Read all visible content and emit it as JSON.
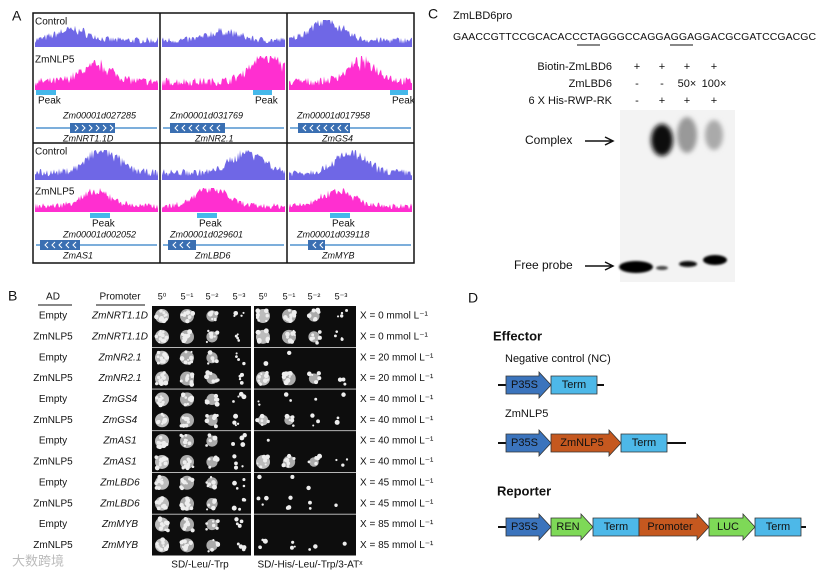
{
  "panel_labels": [
    "A",
    "B",
    "C",
    "D"
  ],
  "panel_a": {
    "rows": [
      {
        "control": "Control",
        "treatment": "ZmNLP5",
        "genes": [
          {
            "peak": "Peak",
            "id": "Zm00001d027285",
            "name": "ZmNRT1.1D"
          },
          {
            "peak": "Peak",
            "id": "Zm00001d031769",
            "name": "ZmNR2.1"
          },
          {
            "peak": "Peak",
            "id": "Zm00001d017958",
            "name": "ZmGS4"
          }
        ]
      },
      {
        "control": "Control",
        "treatment": "ZmNLP5",
        "genes": [
          {
            "peak": "Peak",
            "id": "Zm00001d002052",
            "name": "ZmAS1"
          },
          {
            "peak": "Peak",
            "id": "Zm00001d029601",
            "name": "ZmLBD6"
          },
          {
            "peak": "Peak",
            "id": "Zm00001d039118",
            "name": "ZmMYB"
          }
        ]
      }
    ]
  },
  "panel_b": {
    "headers": [
      "AD",
      "Promoter"
    ],
    "dilutions": [
      "5⁰",
      "5⁻¹",
      "5⁻²",
      "5⁻³",
      "5⁰",
      "5⁻¹",
      "5⁻²",
      "5⁻³"
    ],
    "rows": [
      {
        "ad": "Empty",
        "promoter": "ZmNRT1.1D",
        "condition": "X = 0 mmol L⁻¹"
      },
      {
        "ad": "ZmNLP5",
        "promoter": "ZmNRT1.1D",
        "condition": "X = 0 mmol L⁻¹"
      },
      {
        "ad": "Empty",
        "promoter": "ZmNR2.1",
        "condition": "X = 20 mmol L⁻¹"
      },
      {
        "ad": "ZmNLP5",
        "promoter": "ZmNR2.1",
        "condition": "X = 20 mmol L⁻¹"
      },
      {
        "ad": "Empty",
        "promoter": "ZmGS4",
        "condition": "X = 40 mmol L⁻¹"
      },
      {
        "ad": "ZmNLP5",
        "promoter": "ZmGS4",
        "condition": "X = 40 mmol L⁻¹"
      },
      {
        "ad": "Empty",
        "promoter": "ZmAS1",
        "condition": "X = 40 mmol L⁻¹"
      },
      {
        "ad": "ZmNLP5",
        "promoter": "ZmAS1",
        "condition": "X = 40 mmol L⁻¹"
      },
      {
        "ad": "Empty",
        "promoter": "ZmLBD6",
        "condition": "X = 45 mmol L⁻¹"
      },
      {
        "ad": "ZmNLP5",
        "promoter": "ZmLBD6",
        "condition": "X = 45 mmol L⁻¹"
      },
      {
        "ad": "Empty",
        "promoter": "ZmMYB",
        "condition": "X = 85 mmol L⁻¹"
      },
      {
        "ad": "ZmNLP5",
        "promoter": "ZmMYB",
        "condition": "X = 85 mmol L⁻¹"
      }
    ],
    "media": [
      "SD/-Leu/-Trp",
      "SD/-His/-Leu/-Trp/3-ATˣ"
    ]
  },
  "panel_c": {
    "title": "ZmLBD6pro",
    "sequence": "GAACCGTTCCGCACACCCTAGGGCCAGGAGGAGGACGCGATCCGACGC",
    "rows": [
      {
        "label": "Biotin-ZmLBD6",
        "lanes": [
          "+",
          "+",
          "+",
          "+"
        ]
      },
      {
        "label": "ZmLBD6",
        "lanes": [
          "-",
          "-",
          "50×",
          "100×"
        ]
      },
      {
        "label": "6 X His-RWP-RK",
        "lanes": [
          "-",
          "+",
          "+",
          "+"
        ]
      }
    ],
    "bands": [
      "Complex",
      "Free probe"
    ]
  },
  "panel_d": {
    "effector": {
      "title": "Effector",
      "constructs": [
        {
          "name": "Negative control (NC)",
          "parts": [
            {
              "label": "P35S",
              "color": "#3b74bd",
              "shape": "arrow"
            },
            {
              "label": "Term",
              "color": "#4db8e8",
              "shape": "box"
            }
          ]
        },
        {
          "name": "ZmNLP5",
          "parts": [
            {
              "label": "P35S",
              "color": "#3b74bd",
              "shape": "arrow"
            },
            {
              "label": "ZmNLP5",
              "color": "#c5581f",
              "shape": "arrow"
            },
            {
              "label": "Term",
              "color": "#4db8e8",
              "shape": "box"
            }
          ]
        }
      ]
    },
    "reporter": {
      "title": "Reporter",
      "parts": [
        {
          "label": "P35S",
          "color": "#3b74bd",
          "shape": "arrow"
        },
        {
          "label": "REN",
          "color": "#7ed957",
          "shape": "arrow"
        },
        {
          "label": "Term",
          "color": "#4db8e8",
          "shape": "box"
        },
        {
          "label": "Promoter",
          "color": "#c5581f",
          "shape": "arrow"
        },
        {
          "label": "LUC",
          "color": "#7ed957",
          "shape": "arrow"
        },
        {
          "label": "Term",
          "color": "#4db8e8",
          "shape": "box"
        }
      ]
    }
  },
  "watermark": "大数跨境"
}
